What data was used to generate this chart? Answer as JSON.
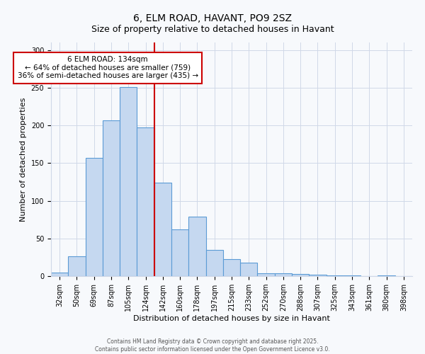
{
  "title": "6, ELM ROAD, HAVANT, PO9 2SZ",
  "subtitle": "Size of property relative to detached houses in Havant",
  "xlabel": "Distribution of detached houses by size in Havant",
  "ylabel": "Number of detached properties",
  "bar_labels": [
    "32sqm",
    "50sqm",
    "69sqm",
    "87sqm",
    "105sqm",
    "124sqm",
    "142sqm",
    "160sqm",
    "178sqm",
    "197sqm",
    "215sqm",
    "233sqm",
    "252sqm",
    "270sqm",
    "288sqm",
    "307sqm",
    "325sqm",
    "343sqm",
    "361sqm",
    "380sqm",
    "398sqm"
  ],
  "bar_values": [
    5,
    26,
    157,
    207,
    251,
    197,
    124,
    62,
    79,
    35,
    23,
    18,
    4,
    4,
    3,
    2,
    1,
    1,
    0,
    1,
    0
  ],
  "bar_color": "#c5d8f0",
  "bar_edge_color": "#5b9bd5",
  "vline_x": 5.5,
  "vline_color": "#cc0000",
  "annotation_title": "6 ELM ROAD: 134sqm",
  "annotation_line1": "← 64% of detached houses are smaller (759)",
  "annotation_line2": "36% of semi-detached houses are larger (435) →",
  "annotation_box_color": "#ffffff",
  "annotation_box_edge": "#cc0000",
  "ylim": [
    0,
    310
  ],
  "yticks": [
    0,
    50,
    100,
    150,
    200,
    250,
    300
  ],
  "footer1": "Contains HM Land Registry data © Crown copyright and database right 2025.",
  "footer2": "Contains public sector information licensed under the Open Government Licence v3.0.",
  "bg_color": "#f7f9fc",
  "grid_color": "#d0d8e8",
  "title_fontsize": 10,
  "subtitle_fontsize": 9,
  "axis_label_fontsize": 8,
  "tick_fontsize": 7,
  "annotation_fontsize": 7.5,
  "footer_fontsize": 5.5
}
